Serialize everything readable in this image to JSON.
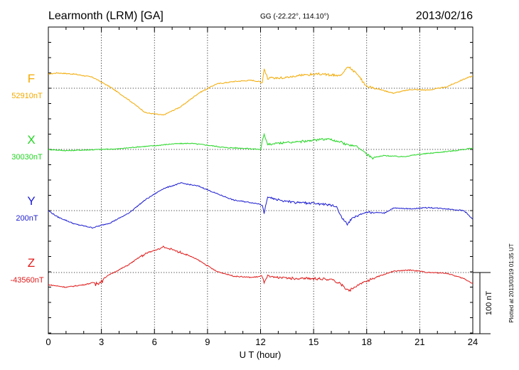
{
  "header": {
    "station": "Learmonth (LRM)  [GA]",
    "coords": "GG (-22.22°, 114.10°)",
    "date": "2013/02/16"
  },
  "footer_note": "Plotted at 2013/03/19 01:35 UT",
  "scale_bar_label": "100 nT",
  "colors": {
    "F": "#f2a900",
    "X": "#22d622",
    "Y": "#1c1cd0",
    "Z": "#e01a1a"
  },
  "chart_data": {
    "type": "line",
    "title": "",
    "xlabel": "U T (hour)",
    "ylabel": "",
    "xlim": [
      0,
      24
    ],
    "x_ticks": [
      "0",
      "3",
      "6",
      "9",
      "12",
      "15",
      "18",
      "21",
      "24"
    ],
    "grid": true,
    "scale_bar_nT": 100,
    "series": [
      {
        "name": "F",
        "baseline_label": "52910nT",
        "color": "#f2a900",
        "points": [
          [
            0,
            23
          ],
          [
            0.5,
            25
          ],
          [
            1.5,
            23
          ],
          [
            2.5,
            18
          ],
          [
            3.5,
            2
          ],
          [
            4.5,
            -18
          ],
          [
            5.5,
            -40
          ],
          [
            6.5,
            -44
          ],
          [
            7.5,
            -30
          ],
          [
            8.5,
            -8
          ],
          [
            9.5,
            7
          ],
          [
            10.5,
            11
          ],
          [
            11.5,
            13
          ],
          [
            12.1,
            10
          ],
          [
            12.2,
            32
          ],
          [
            12.4,
            16
          ],
          [
            13.5,
            18
          ],
          [
            14.5,
            22
          ],
          [
            15.5,
            23
          ],
          [
            16.5,
            20
          ],
          [
            16.9,
            36
          ],
          [
            17.3,
            28
          ],
          [
            18,
            3
          ],
          [
            18.5,
            0
          ],
          [
            19.5,
            -8
          ],
          [
            20.5,
            -2
          ],
          [
            21.5,
            -3
          ],
          [
            22.5,
            2
          ],
          [
            23.5,
            15
          ],
          [
            24,
            20
          ]
        ]
      },
      {
        "name": "X",
        "baseline_label": "30030nT",
        "color": "#22d622",
        "points": [
          [
            0,
            0
          ],
          [
            1,
            -2
          ],
          [
            2,
            -1
          ],
          [
            3,
            0
          ],
          [
            4,
            1
          ],
          [
            5,
            4
          ],
          [
            6,
            6
          ],
          [
            7,
            9
          ],
          [
            8,
            10
          ],
          [
            9,
            7
          ],
          [
            10,
            3
          ],
          [
            11,
            2
          ],
          [
            12,
            0
          ],
          [
            12.2,
            26
          ],
          [
            12.4,
            8
          ],
          [
            13,
            10
          ],
          [
            14,
            12
          ],
          [
            15,
            15
          ],
          [
            15.8,
            17
          ],
          [
            16.5,
            12
          ],
          [
            16.9,
            8
          ],
          [
            17.4,
            5
          ],
          [
            17.8,
            -2
          ],
          [
            18.3,
            -14
          ],
          [
            19,
            -10
          ],
          [
            20,
            -12
          ],
          [
            21,
            -8
          ],
          [
            22,
            -5
          ],
          [
            23,
            -2
          ],
          [
            24,
            2
          ]
        ]
      },
      {
        "name": "Y",
        "baseline_label": "200nT",
        "color": "#1c1cd0",
        "points": [
          [
            0,
            0
          ],
          [
            0.5,
            -10
          ],
          [
            1.5,
            -22
          ],
          [
            2.5,
            -28
          ],
          [
            3.5,
            -20
          ],
          [
            4.5,
            -5
          ],
          [
            5.5,
            18
          ],
          [
            6.5,
            36
          ],
          [
            7.5,
            45
          ],
          [
            8.5,
            40
          ],
          [
            9.5,
            28
          ],
          [
            10.5,
            17
          ],
          [
            11.5,
            13
          ],
          [
            12.1,
            10
          ],
          [
            12.2,
            -5
          ],
          [
            12.4,
            22
          ],
          [
            13,
            17
          ],
          [
            14,
            13
          ],
          [
            15,
            12
          ],
          [
            16,
            9
          ],
          [
            16.3,
            6
          ],
          [
            16.6,
            -12
          ],
          [
            16.9,
            -22
          ],
          [
            17.2,
            -12
          ],
          [
            18,
            -2
          ],
          [
            19,
            -4
          ],
          [
            19.5,
            4
          ],
          [
            20.5,
            3
          ],
          [
            21.5,
            5
          ],
          [
            22.5,
            3
          ],
          [
            23.5,
            0
          ],
          [
            24,
            -14
          ]
        ]
      },
      {
        "name": "Z",
        "baseline_label": "-43560nT",
        "color": "#e01a1a",
        "points": [
          [
            0,
            -20
          ],
          [
            1,
            -24
          ],
          [
            2,
            -20
          ],
          [
            2.8,
            -15
          ],
          [
            3.5,
            -3
          ],
          [
            4.5,
            12
          ],
          [
            5.5,
            32
          ],
          [
            6.5,
            43
          ],
          [
            7.5,
            34
          ],
          [
            8.5,
            20
          ],
          [
            9.5,
            2
          ],
          [
            10.5,
            -6
          ],
          [
            11.5,
            -8
          ],
          [
            12.1,
            -6
          ],
          [
            12.2,
            -18
          ],
          [
            12.4,
            -6
          ],
          [
            13,
            -8
          ],
          [
            14,
            -10
          ],
          [
            15,
            -10
          ],
          [
            16,
            -11
          ],
          [
            16.5,
            -18
          ],
          [
            17,
            -30
          ],
          [
            17.5,
            -20
          ],
          [
            18.5,
            -8
          ],
          [
            19.5,
            2
          ],
          [
            20.5,
            4
          ],
          [
            21.5,
            0
          ],
          [
            22.5,
            -1
          ],
          [
            23.5,
            -10
          ],
          [
            24,
            -18
          ]
        ]
      }
    ]
  }
}
